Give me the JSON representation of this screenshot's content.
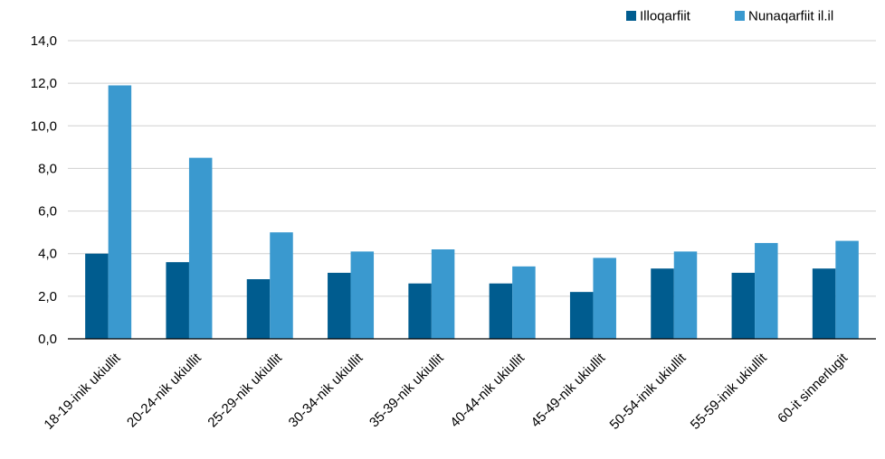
{
  "chart_data": {
    "type": "bar",
    "title": "",
    "xlabel": "",
    "ylabel": "",
    "ylim": [
      0,
      14
    ],
    "ytick_step": 2,
    "ytick_labels": [
      "0,0",
      "2,0",
      "4,0",
      "6,0",
      "8,0",
      "10,0",
      "12,0",
      "14,0"
    ],
    "grid": true,
    "legend_position": "top-right",
    "categories": [
      "18-19-inik ukiullit",
      "20-24-nik ukiullit",
      "25-29-nik ukiullit",
      "30-34-nik ukiullit",
      "35-39-nik ukiullit",
      "40-44-nik ukiullit",
      "45-49-nik ukiullit",
      "50-54-inik ukiullit",
      "55-59-inik ukiullit",
      "60-it sinnerlugit"
    ],
    "series": [
      {
        "name": "Illoqarfiit",
        "color": "#005c8f",
        "values": [
          4.0,
          3.6,
          2.8,
          3.1,
          2.6,
          2.6,
          2.2,
          3.3,
          3.1,
          3.3
        ]
      },
      {
        "name": "Nunaqarfiit il.il",
        "color": "#3a99cf",
        "values": [
          11.9,
          8.5,
          5.0,
          4.1,
          4.2,
          3.4,
          3.8,
          4.1,
          4.5,
          4.6
        ]
      }
    ]
  }
}
